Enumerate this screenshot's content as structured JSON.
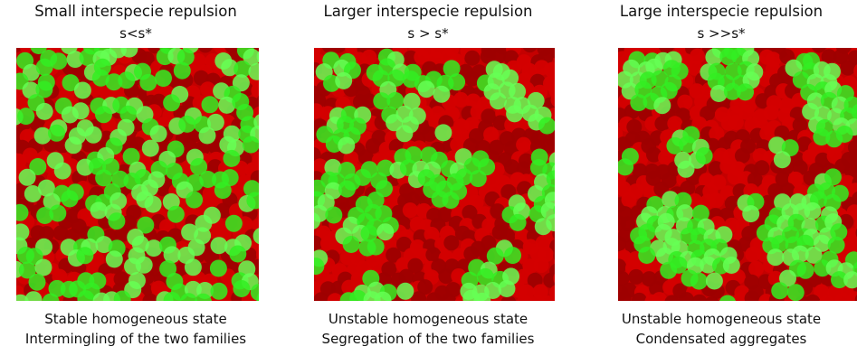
{
  "panels": [
    {
      "title": "Small interspecie repulsion",
      "subtitle": "s<s*",
      "caption_line1": "Stable homogeneous state",
      "caption_line2": "Intermingling of the two families",
      "pattern": "intermingled"
    },
    {
      "title": "Larger interspecie repulsion",
      "subtitle": "s > s*",
      "caption_line1": "Unstable homogeneous state",
      "caption_line2": "Segregation of the two families",
      "pattern": "segregated"
    },
    {
      "title": "Large interspecie repulsion",
      "subtitle": "s >>s*",
      "caption_line1": "Unstable homogeneous state",
      "caption_line2": "Condensated aggregates",
      "pattern": "aggregates"
    }
  ],
  "colors": {
    "red_particle": "#d40000",
    "red_particle_dark": "#9e0000",
    "green_particle": "#33ee22",
    "green_particle_light": "#66ff55",
    "background": "#c40000"
  }
}
